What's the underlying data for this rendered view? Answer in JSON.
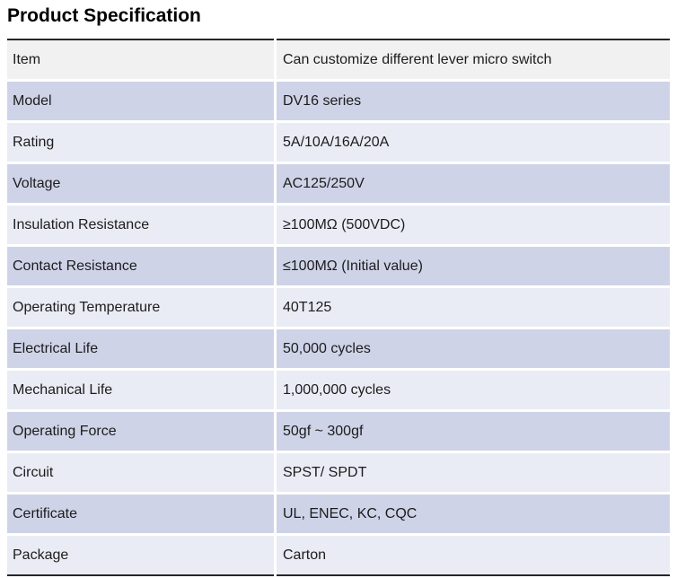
{
  "page": {
    "title": "Product Specification"
  },
  "colors": {
    "border": "#262626",
    "header_row_bg": "#F1F1F1",
    "row_alt_bg": "#CFD3E8",
    "row_bg": "#EAECF5",
    "text": "#1C1C1C",
    "page_bg": "#FFFFFF"
  },
  "table": {
    "rows": [
      {
        "label": "Item",
        "value": "Can customize different lever micro switch"
      },
      {
        "label": "Model",
        "value": "DV16 series"
      },
      {
        "label": "Rating",
        "value": "5A/10A/16A/20A"
      },
      {
        "label": "Voltage",
        "value": "AC125/250V"
      },
      {
        "label": "Insulation Resistance",
        "value": "≥100MΩ (500VDC)"
      },
      {
        "label": "Contact Resistance",
        "value": "≤100MΩ (Initial value)"
      },
      {
        "label": "Operating Temperature",
        "value": "40T125"
      },
      {
        "label": "Electrical Life",
        "value": "50,000 cycles"
      },
      {
        "label": "Mechanical Life",
        "value": "1,000,000 cycles"
      },
      {
        "label": "Operating Force",
        "value": "50gf ~ 300gf"
      },
      {
        "label": "Circuit",
        "value": "SPST/ SPDT"
      },
      {
        "label": "Certificate",
        "value": "UL, ENEC, KC, CQC"
      },
      {
        "label": "Package",
        "value": "Carton"
      }
    ]
  }
}
